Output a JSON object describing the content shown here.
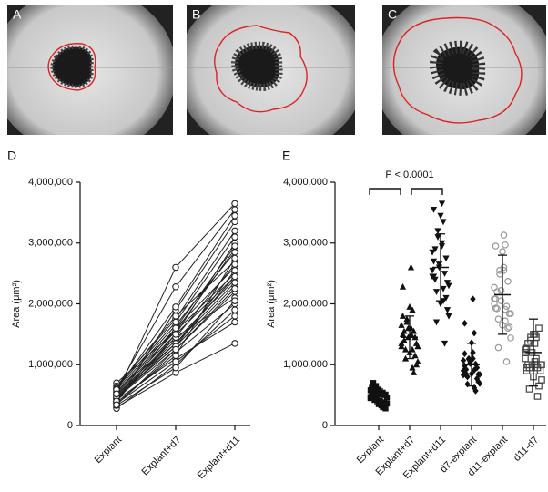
{
  "panel_labels": [
    "A",
    "B",
    "C"
  ],
  "chart_data": [
    {
      "type": "line",
      "panel": "D",
      "ylabel": "Area (μm²)",
      "color": "#222222",
      "categories": [
        "Explant",
        "Explant+d7",
        "Explant+d11"
      ],
      "ylim": [
        0,
        4000000
      ],
      "yticks": [
        0,
        {
          "value": 1000000,
          "label": "1,000,000"
        },
        {
          "value": 2000000,
          "label": "2,000,000"
        },
        {
          "value": 3000000,
          "label": "3,000,000"
        },
        {
          "value": 4000000,
          "label": "4,000,000"
        }
      ],
      "series": [
        {
          "values": [
            450000,
            1350000,
            2450000
          ]
        },
        {
          "values": [
            520000,
            2600000,
            3650000
          ]
        },
        {
          "values": [
            600000,
            2280000,
            3550000
          ]
        },
        {
          "values": [
            380000,
            1900000,
            3350000
          ]
        },
        {
          "values": [
            700000,
            1550000,
            2900000
          ]
        },
        {
          "values": [
            300000,
            870000,
            1350000
          ]
        },
        {
          "values": [
            420000,
            1100000,
            1700000
          ]
        },
        {
          "values": [
            500000,
            1450000,
            2100000
          ]
        },
        {
          "values": [
            650000,
            1750000,
            3200000
          ]
        },
        {
          "values": [
            280000,
            1000000,
            1900000
          ]
        },
        {
          "values": [
            550000,
            1600000,
            2600000
          ]
        },
        {
          "values": [
            460000,
            1300000,
            2300000
          ]
        },
        {
          "values": [
            350000,
            1200000,
            2000000
          ]
        },
        {
          "values": [
            580000,
            1650000,
            2850000
          ]
        },
        {
          "values": [
            400000,
            1500000,
            3000000
          ]
        },
        {
          "values": [
            620000,
            1800000,
            2700000
          ]
        },
        {
          "values": [
            330000,
            950000,
            2050000
          ]
        },
        {
          "values": [
            480000,
            1400000,
            2400000
          ]
        },
        {
          "values": [
            540000,
            1550000,
            2500000
          ]
        },
        {
          "values": [
            450000,
            1250000,
            2200000
          ]
        },
        {
          "values": [
            380000,
            1150000,
            2750000
          ]
        },
        {
          "values": [
            610000,
            1700000,
            3100000
          ]
        },
        {
          "values": [
            510000,
            1350000,
            2350000
          ]
        },
        {
          "values": [
            430000,
            1450000,
            2650000
          ]
        },
        {
          "values": [
            360000,
            1050000,
            1800000
          ]
        },
        {
          "values": [
            590000,
            1950000,
            3450000
          ]
        },
        {
          "values": [
            470000,
            1300000,
            2550000
          ]
        },
        {
          "values": [
            400000,
            1600000,
            2950000
          ]
        },
        {
          "values": [
            520000,
            1500000,
            2450000
          ]
        },
        {
          "values": [
            340000,
            1250000,
            2250000
          ]
        }
      ]
    },
    {
      "type": "dot",
      "panel": "E",
      "ylabel": "Area (μm²)",
      "annotation": "P < 0.0001",
      "categories": [
        "Explant",
        "Explant+d7",
        "Explant+d11",
        "d7-explant",
        "d11-explant",
        "d11-d7"
      ],
      "ylim": [
        0,
        4000000
      ],
      "yticks": [
        0,
        {
          "value": 1000000,
          "label": "1,000,000"
        },
        {
          "value": 2000000,
          "label": "2,000,000"
        },
        {
          "value": 3000000,
          "label": "3,000,000"
        },
        {
          "value": 4000000,
          "label": "4,000,000"
        }
      ],
      "groups": [
        {
          "marker": "square",
          "color": "#111111",
          "mean": 480000,
          "sd": 120000,
          "values": [
            450000,
            520000,
            600000,
            380000,
            700000,
            300000,
            420000,
            500000,
            650000,
            280000,
            550000,
            460000,
            350000,
            580000,
            400000,
            620000,
            330000,
            480000,
            540000,
            450000,
            380000,
            610000,
            510000,
            430000,
            360000,
            590000,
            470000,
            400000,
            520000,
            340000
          ]
        },
        {
          "marker": "triangle-up",
          "color": "#111111",
          "mean": 1450000,
          "sd": 350000,
          "values": [
            1350000,
            2600000,
            2280000,
            1900000,
            1550000,
            870000,
            1100000,
            1450000,
            1750000,
            1000000,
            1600000,
            1300000,
            1200000,
            1650000,
            1500000,
            1800000,
            950000,
            1400000,
            1550000,
            1250000,
            1150000,
            1700000,
            1350000,
            1450000,
            1050000,
            1950000,
            1300000,
            1600000,
            1500000,
            1250000
          ]
        },
        {
          "marker": "triangle-down",
          "color": "#111111",
          "mean": 2600000,
          "sd": 550000,
          "values": [
            2450000,
            3650000,
            3550000,
            3350000,
            2900000,
            1350000,
            1700000,
            2100000,
            3200000,
            1900000,
            2600000,
            2300000,
            2000000,
            2850000,
            3000000,
            2700000,
            2050000,
            2400000,
            2500000,
            2200000,
            2750000,
            3100000,
            2350000,
            2650000,
            1800000,
            3450000,
            2550000,
            2950000,
            2450000,
            2250000
          ]
        },
        {
          "marker": "diamond",
          "color": "#111111",
          "mean": 1000000,
          "sd": 350000,
          "values": [
            900000,
            2080000,
            1680000,
            1520000,
            850000,
            570000,
            680000,
            950000,
            1100000,
            720000,
            1050000,
            840000,
            850000,
            1070000,
            1100000,
            1180000,
            620000,
            920000,
            1010000,
            800000,
            770000,
            1090000,
            840000,
            1020000,
            690000,
            1360000,
            830000,
            1200000,
            980000,
            910000
          ]
        },
        {
          "marker": "circle-open",
          "color": "#9a9a9a",
          "mean": 2150000,
          "sd": 650000,
          "values": [
            2000000,
            3130000,
            2950000,
            2970000,
            2200000,
            1050000,
            1280000,
            1600000,
            2550000,
            1620000,
            2050000,
            1840000,
            1650000,
            2270000,
            2600000,
            2080000,
            1720000,
            1920000,
            1960000,
            1750000,
            2370000,
            2490000,
            1840000,
            2220000,
            1440000,
            2860000,
            2080000,
            2550000,
            1930000,
            1910000
          ]
        },
        {
          "marker": "square-open",
          "color": "#444444",
          "mean": 1200000,
          "sd": 550000,
          "values": [
            1100000,
            1050000,
            1270000,
            1450000,
            1350000,
            480000,
            600000,
            650000,
            1450000,
            900000,
            1000000,
            1000000,
            800000,
            1200000,
            1500000,
            900000,
            1100000,
            1000000,
            950000,
            950000,
            1600000,
            1400000,
            1000000,
            1200000,
            750000,
            1500000,
            1250000,
            1350000,
            950000,
            1000000
          ]
        }
      ]
    }
  ]
}
